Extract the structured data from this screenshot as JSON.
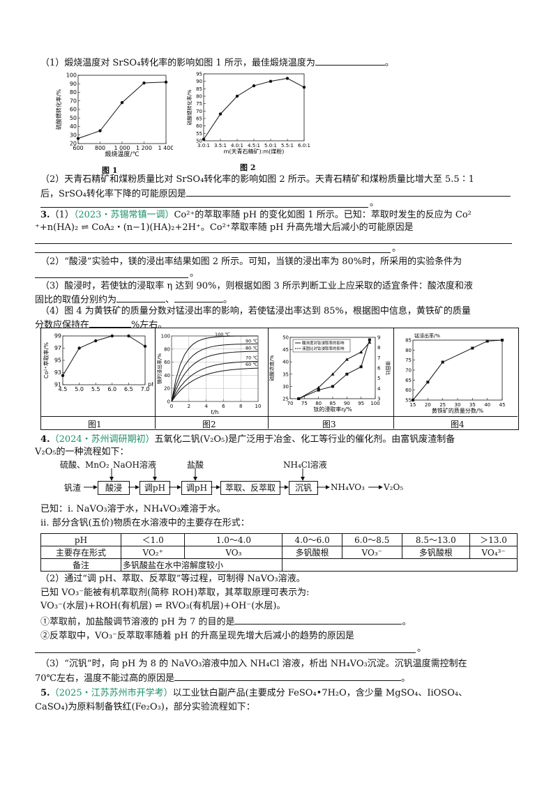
{
  "q_intro": {
    "p1": "（1）煅烧温度对 SrSO₄转化率的影响如图 1 所示，最佳煅烧温度为",
    "p1_end": "。",
    "p2a": "（2）天青石精矿和煤粉质量比对 SrSO₄转化率的影响如图 2 所示。天青石精矿和煤粉质量比增大至 5.5∶1",
    "p2b": "后，SrSO₄转化率下降的可能原因是",
    "p2_end": "。"
  },
  "fig1_top": {
    "caption": "图 1",
    "xlabel": "煅烧温度/℃",
    "ylabel": "硫酸锶转化率/%",
    "xticks": [
      "600",
      "800",
      "1 000",
      "1 200",
      "1 400"
    ],
    "yticks": [
      "20",
      "30",
      "40",
      "50",
      "60",
      "70",
      "80",
      "90",
      "100"
    ]
  },
  "fig2_top": {
    "caption": "图 2",
    "xlabel": "m(天青石精矿):m(煤粉)",
    "ylabel": "硫酸锶转化率/%",
    "xticks": [
      "3.0:1",
      "3.5:1",
      "4.0:1",
      "4.5:1",
      "5.0:1",
      "5.5:1",
      "6.0:1"
    ],
    "yticks": [
      "50",
      "55",
      "60",
      "65",
      "70",
      "75",
      "80",
      "85",
      "90",
      "95"
    ]
  },
  "q3": {
    "num": "3.",
    "part1": "（1）",
    "source": "（2023・苏锡常镇一调）",
    "l1": "Co²⁺的萃取率随 pH 的变化如图 1 所示。已知：萃取时发生的反应为 Co²",
    "l2": "⁺+n(HA)₂ ⇌ CoA₂・(n−1)(HA)₂+2H⁺。Co²⁺萃取率随 pH 升高先增大后减小的可能原因是",
    "l3_end": "。",
    "p2a": "（2）“酸浸”实验中，镁的浸出率结果如图 2 所示。可知，当镁的浸出率为 80%时，所采用的实验条件为",
    "p2_end": "。",
    "p3a": "（3）酸浸时，若使钛的浸取率 η 达到 90%，则根据如图 3 所示判断工业上应采取的适宜条件：酸浓度和液",
    "p3b1": "固比的取值分别约为",
    "p3b2": "、",
    "p3b3": "。",
    "p4a": "（4）图 4 为黄铁矿的质量分数对锰浸出率的影响，若使锰浸出率达到 85%，根据图中信息，黄铁矿的质量",
    "p4b1": "分数应保持在",
    "p4b2": "%左右。"
  },
  "fig_row": {
    "captions": [
      "图1",
      "图2",
      "图3",
      "图4"
    ],
    "f1_ylabel": "Co²⁺萃取率/%",
    "f1_xlabel": "pH",
    "f1_xticks": [
      "4.5",
      "5.0",
      "5.5",
      "6.0",
      "6.5",
      "7.0"
    ],
    "f1_yticks": [
      "91",
      "93",
      "95",
      "97",
      "99"
    ],
    "f2_ylabel": "镁的浸出率/%",
    "f2_xlabel": "t/h",
    "f2_xticks": [
      "0",
      "2",
      "4",
      "6",
      "8",
      "10"
    ],
    "f2_yticks": [
      "0",
      "20",
      "40",
      "60",
      "80",
      "100"
    ],
    "f2_series": [
      "100 ℃",
      "90 ℃",
      "80 ℃",
      "70 ℃",
      "60 ℃"
    ],
    "f3_ylabel": "硫酸浓度/%",
    "f3_y2label": "液固比",
    "f3_xlabel": "钛的浸取率η/%",
    "f3_xticks": [
      "70",
      "75",
      "80",
      "85",
      "90",
      "95",
      "100"
    ],
    "f3_yticks": [
      "25",
      "30",
      "35",
      "40",
      "45",
      "50"
    ],
    "f3_y2ticks": [
      "3",
      "4",
      "5",
      "6",
      "7",
      "8",
      "9"
    ],
    "f3_legend": [
      "酸浓度对钛浸取率的影响",
      "液固比对钛浸取率的影响"
    ],
    "f4_ylabel": "锰浸出率/%",
    "f4_xlabel": "黄铁矿的质量分数/%",
    "f4_xticks": [
      "15",
      "20",
      "25",
      "30",
      "35",
      "40",
      "45"
    ],
    "f4_yticks": [
      "55",
      "60",
      "65",
      "70",
      "75",
      "80",
      "85"
    ]
  },
  "q4": {
    "num": "4.",
    "source": "（2024・苏州调研期初）",
    "l1": "五氧化二钒(V₂O₅)是广泛用于冶金、化工等行业的催化剂。由富钒废渣制备",
    "l2": "V₂O₅的一种流程如下：",
    "flow": {
      "start": "钒渣",
      "boxes": [
        "酸浸",
        "调pH",
        "调pH",
        "萃取、反萃取",
        "沉钒"
      ],
      "reagents": [
        "硫酸、MnO₂",
        "NaOH溶液",
        "盐酸",
        "NH₄Cl溶液"
      ],
      "products": [
        "NH₄VO₃",
        "V₂O₅"
      ]
    },
    "k1": "已知：ⅰ. NaVO₃溶于水，NH₄VO₃难溶于水。",
    "k2": "ⅱ. 部分含钒(五价)物质在水溶液中的主要存在形式：",
    "table_header": [
      "pH",
      "＜1.0",
      "1.0～4.0",
      "4.0～6.0",
      "6.0～8.5",
      "8.5～13.0",
      "＞13.0"
    ],
    "table_row": [
      "主要存在形式",
      "VO₂⁺",
      "VO₃",
      "多钒酸根",
      "VO₃⁻",
      "多钒酸根",
      "VO₄³⁻"
    ],
    "table_note_label": "备注",
    "table_note": "多钒酸盐在水中溶解度较小",
    "p2": "（2）通过“调 pH、萃取、反萃取”等过程，可制得 NaVO₃溶液。",
    "p2b": "已知 VO₃⁻能被有机萃取剂(简称 ROH)萃取，其萃取原理可表示为:",
    "p2c": "VO₃⁻(水层)+ROH(有机层) ⇌ RVO₃(有机层)+OH⁻(水层)。",
    "p2d": "①萃取前，加盐酸调节溶液的 pH 为 7 的目的是",
    "p2d_end": "。",
    "p2e": "②反萃取中，VO₃⁻反萃取率随着 pH 的升高呈现先增大后减小的趋势的原因是",
    "p2e_end": "。",
    "p3a": "（3）“沉钒”时，向 pH 为 8 的 NaVO₃溶液中加入 NH₄Cl 溶液，析出 NH₄VO₃沉淀。沉钒温度需控制在",
    "p3b": "70℃左右，温度不能过高的原因是",
    "p3_end": "。"
  },
  "q5": {
    "num": "5.",
    "source": "（2025・江苏苏州市开学考）",
    "l1": "以工业钛白副产品(主要成分 FeSO₄•7H₂O，含少量 MgSO₄、IiOSO₄、",
    "l2": "CaSO₄)为原料制备铁红(Fe₂O₃)，部分实验流程如下："
  }
}
